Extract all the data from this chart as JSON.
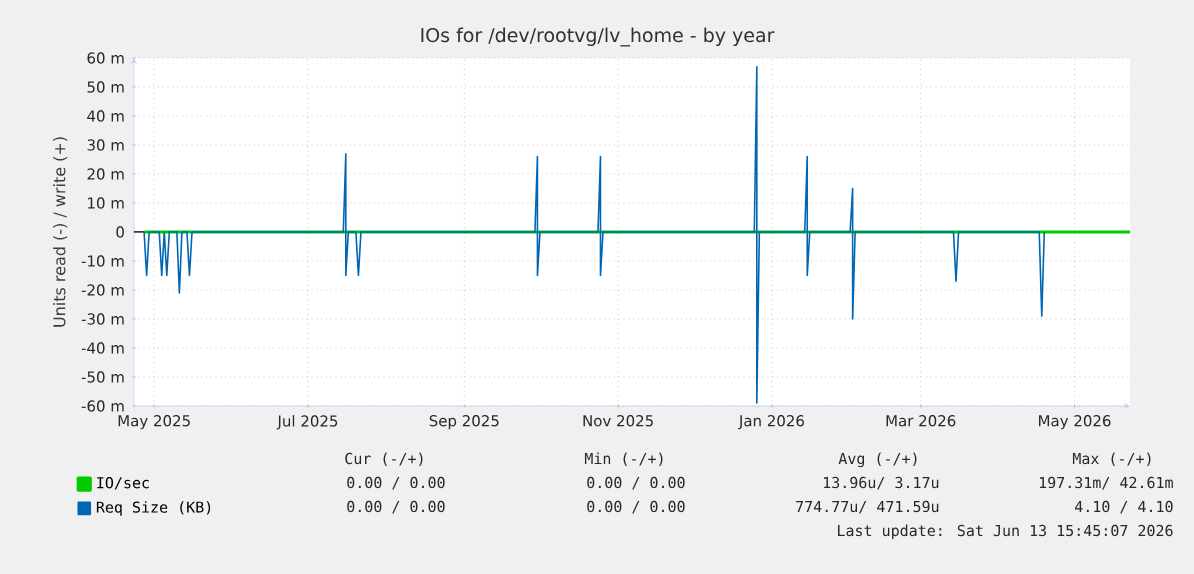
{
  "chart_data": {
    "type": "line",
    "title": "IOs for /dev/rootvg/lv_home - by year",
    "ylabel": "Units read (-) / write (+)",
    "xlim": [
      "2025-04-23",
      "2026-05-23"
    ],
    "xticks": [
      {
        "value": "2025-05-01",
        "label": "May 2025"
      },
      {
        "value": "2025-07-01",
        "label": "Jul 2025"
      },
      {
        "value": "2025-09-01",
        "label": "Sep 2025"
      },
      {
        "value": "2025-11-01",
        "label": "Nov 2025"
      },
      {
        "value": "2026-01-01",
        "label": "Jan 2026"
      },
      {
        "value": "2026-03-01",
        "label": "Mar 2026"
      },
      {
        "value": "2026-05-01",
        "label": "May 2026"
      }
    ],
    "ylim": [
      -60,
      60
    ],
    "yticks": [
      {
        "value": -60,
        "label": "-60 m"
      },
      {
        "value": -50,
        "label": "-50 m"
      },
      {
        "value": -40,
        "label": "-40 m"
      },
      {
        "value": -30,
        "label": "-30 m"
      },
      {
        "value": -20,
        "label": "-20 m"
      },
      {
        "value": -10,
        "label": "-10 m"
      },
      {
        "value": 0,
        "label": "0"
      },
      {
        "value": 10,
        "label": "10 m"
      },
      {
        "value": 20,
        "label": "20 m"
      },
      {
        "value": 30,
        "label": "30 m"
      },
      {
        "value": 40,
        "label": "40 m"
      },
      {
        "value": 50,
        "label": "50 m"
      },
      {
        "value": 60,
        "label": "60 m"
      }
    ],
    "grid": true,
    "legend": "bottom left",
    "marker": "none",
    "line_style": "solid",
    "ref_lines": [
      {
        "axis": "y",
        "value": 0,
        "color": "#000000"
      }
    ],
    "series": [
      {
        "name": "IO/sec",
        "color": "#00cc00",
        "x": [
          "2025-04-27",
          "2026-05-23"
        ],
        "values": [
          0,
          0
        ]
      },
      {
        "name": "Req Size (KB)",
        "color": "#0066b3",
        "x": [
          "2025-04-27",
          "2025-04-28",
          "2025-04-29",
          "2025-05-03",
          "2025-05-04",
          "2025-05-05",
          "2025-05-06",
          "2025-05-07",
          "2025-05-10",
          "2025-05-11",
          "2025-05-12",
          "2025-05-14",
          "2025-05-15",
          "2025-05-16",
          "2025-07-15",
          "2025-07-16",
          "2025-07-16",
          "2025-07-17",
          "2025-07-20",
          "2025-07-21",
          "2025-07-22",
          "2025-09-29",
          "2025-09-30",
          "2025-09-30",
          "2025-10-01",
          "2025-10-24",
          "2025-10-25",
          "2025-10-25",
          "2025-10-26",
          "2025-12-25",
          "2025-12-26",
          "2025-12-26",
          "2025-12-27",
          "2026-01-14",
          "2026-01-15",
          "2026-01-15",
          "2026-01-16",
          "2026-02-01",
          "2026-02-02",
          "2026-02-02",
          "2026-02-03",
          "2026-03-14",
          "2026-03-15",
          "2026-03-16",
          "2026-04-17",
          "2026-04-18",
          "2026-04-19"
        ],
        "values": [
          0,
          -15,
          0,
          0,
          -15,
          0,
          -15,
          0,
          0,
          -21,
          0,
          0,
          -15,
          0,
          0,
          27,
          -15,
          0,
          0,
          -15,
          0,
          0,
          26,
          -15,
          0,
          0,
          26,
          -15,
          0,
          0,
          57,
          -59,
          0,
          0,
          26,
          -15,
          0,
          0,
          15,
          -30,
          0,
          0,
          -17,
          0,
          0,
          -29,
          0
        ]
      }
    ],
    "annotations": [
      "Cur (-/+)",
      "Min (-/+)",
      "Avg (-/+)",
      "Max (-/+)",
      "0.00 /    0.00",
      "0.00 /    0.00",
      "13.96u/    3.17u",
      "197.31m/   42.61m",
      "0.00 /    0.00",
      "0.00 /    0.00",
      "774.77u/ 471.59u",
      "4.10 /    4.10",
      "Last update: Sat Jun 13 15:45:07 2026"
    ]
  }
}
